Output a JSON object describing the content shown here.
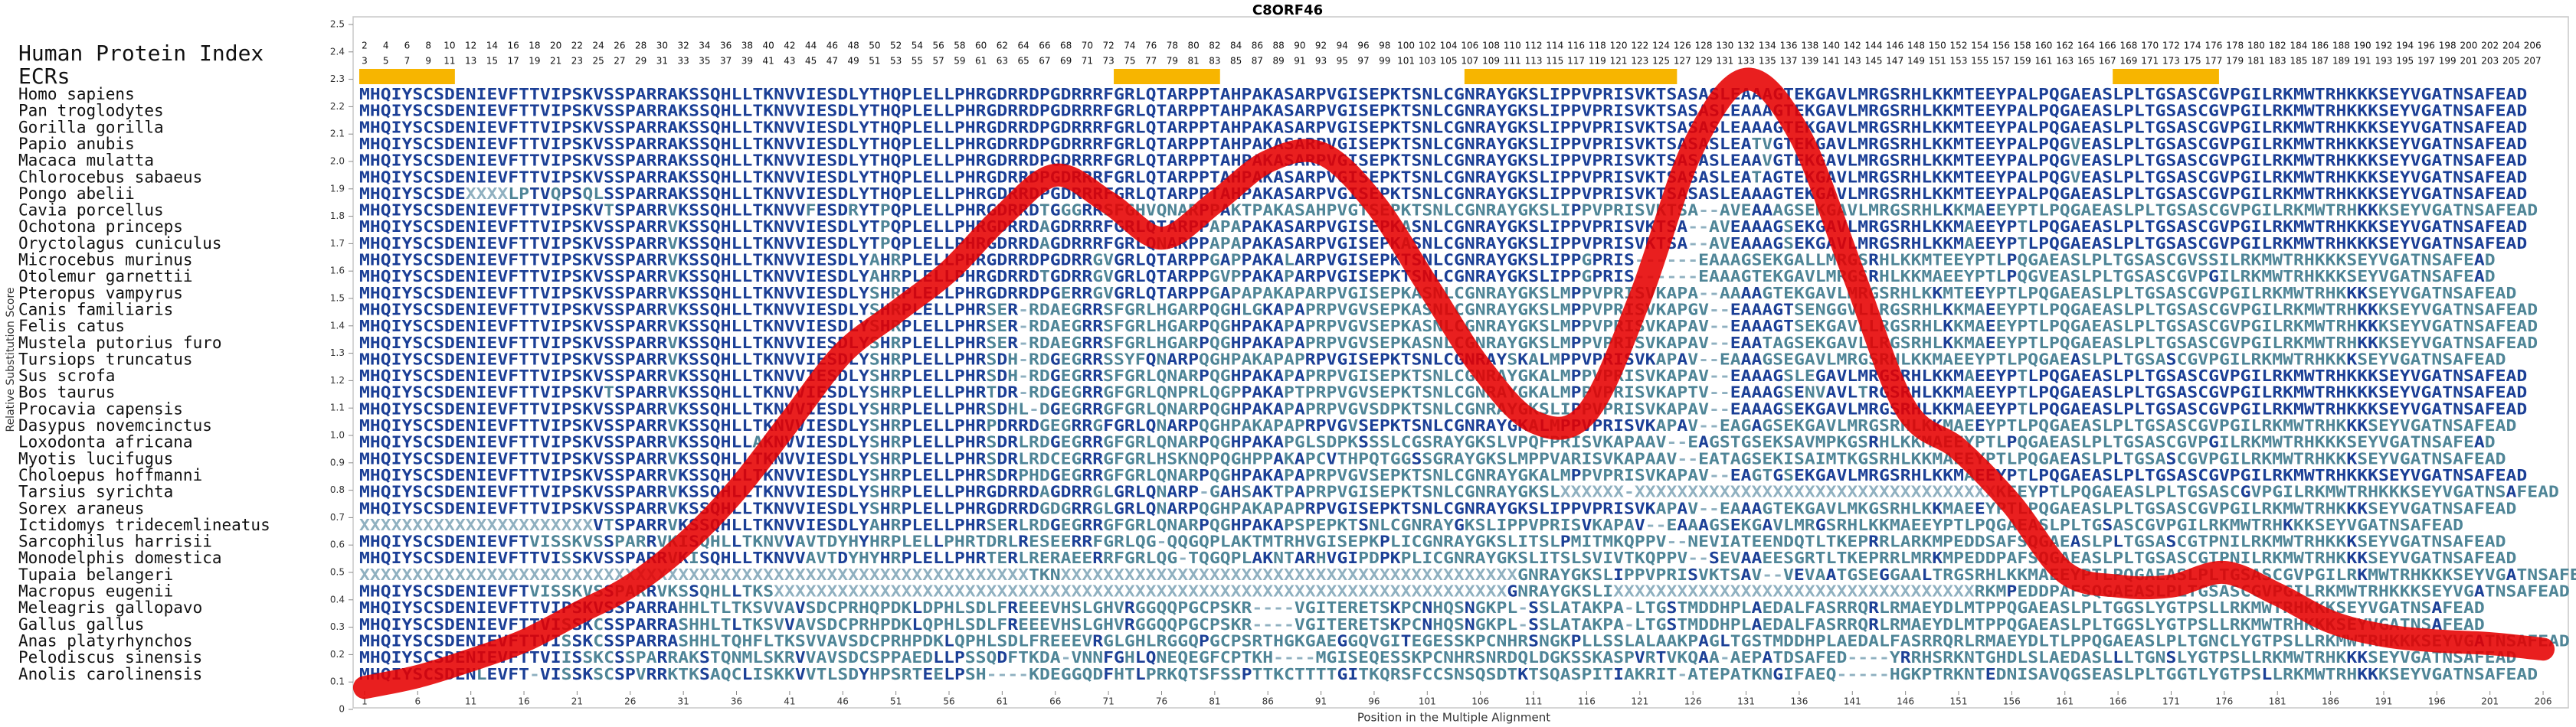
{
  "chart_data": {
    "type": "line",
    "title": "C8ORF46",
    "x_label": "Position in the Multiple Alignment",
    "y_label": "Relative Substitution Score",
    "x": [
      1,
      6,
      11,
      16,
      21,
      26,
      31,
      36,
      41,
      46,
      51,
      56,
      61,
      66,
      71,
      76,
      81,
      86,
      91,
      96,
      101,
      106,
      111,
      116,
      121,
      126,
      131,
      136,
      141,
      146,
      151,
      156,
      161,
      166,
      171,
      176,
      181,
      186,
      191,
      196,
      201,
      206
    ],
    "values": [
      0.08,
      0.12,
      0.18,
      0.25,
      0.35,
      0.45,
      0.6,
      0.8,
      1.05,
      1.3,
      1.45,
      1.6,
      1.8,
      1.95,
      1.85,
      1.72,
      1.85,
      2.0,
      2.03,
      1.85,
      1.55,
      1.25,
      1.05,
      1.08,
      1.5,
      2.05,
      2.3,
      2.1,
      1.6,
      1.1,
      0.95,
      0.75,
      0.5,
      0.45,
      0.45,
      0.5,
      0.42,
      0.32,
      0.27,
      0.25,
      0.24,
      0.22
    ],
    "color": "#e60000",
    "xlim": [
      0.5,
      206.5
    ],
    "xticks": [
      1,
      6,
      11,
      16,
      21,
      26,
      31,
      36,
      41,
      46,
      51,
      56,
      61,
      66,
      71,
      76,
      81,
      86,
      91,
      96,
      101,
      106,
      111,
      116,
      121,
      126,
      131,
      136,
      141,
      146,
      151,
      156,
      161,
      166,
      171,
      176,
      181,
      186,
      191,
      196,
      201,
      206
    ],
    "ylim": [
      0,
      2.5
    ],
    "yticks": [
      0,
      0.1,
      0.2,
      0.3,
      0.4,
      0.5,
      0.6,
      0.7,
      0.8,
      0.9,
      {
        "value": 1,
        "label": "1.0"
      },
      1.1,
      1.2,
      1.3,
      1.4,
      1.5,
      1.6,
      1.7,
      1.8,
      1.9,
      {
        "value": 2,
        "label": "2.0"
      },
      2.1,
      2.2,
      2.3,
      2.4,
      2.5
    ],
    "alignment": {
      "protein_index_label": "Human Protein Index",
      "protein_index_top": [
        2,
        4,
        6,
        8,
        10,
        12,
        14,
        16,
        18,
        20,
        22,
        24,
        26,
        28,
        30,
        32,
        34,
        36,
        38,
        40,
        42,
        44,
        46,
        48,
        50,
        52,
        54,
        56,
        58,
        60,
        62,
        64,
        66,
        68,
        70,
        72,
        74,
        76,
        78,
        80,
        82,
        84,
        86,
        88,
        90,
        92,
        94,
        96,
        98,
        100,
        102,
        104,
        106,
        108,
        110,
        112,
        114,
        116,
        118,
        120,
        122,
        124,
        126,
        128,
        130,
        132,
        134,
        136,
        138,
        140,
        142,
        144,
        146,
        148,
        150,
        152,
        154,
        156,
        158,
        160,
        162,
        164,
        166,
        168,
        170,
        172,
        174,
        176,
        178,
        180,
        182,
        184,
        186,
        188,
        190,
        192,
        194,
        196,
        198,
        200,
        202,
        204,
        206
      ],
      "protein_index_bottom": [
        3,
        5,
        7,
        9,
        11,
        13,
        15,
        17,
        19,
        21,
        23,
        25,
        27,
        29,
        31,
        33,
        35,
        37,
        39,
        41,
        43,
        45,
        47,
        49,
        51,
        53,
        55,
        57,
        59,
        61,
        63,
        65,
        67,
        69,
        71,
        73,
        75,
        77,
        79,
        81,
        83,
        85,
        87,
        89,
        91,
        93,
        95,
        97,
        99,
        101,
        103,
        105,
        107,
        109,
        111,
        113,
        115,
        117,
        119,
        121,
        123,
        125,
        127,
        129,
        131,
        133,
        135,
        137,
        139,
        141,
        143,
        145,
        147,
        149,
        151,
        153,
        155,
        157,
        159,
        161,
        163,
        165,
        167,
        169,
        171,
        173,
        175,
        177,
        179,
        181,
        183,
        185,
        187,
        189,
        191,
        193,
        195,
        197,
        199,
        201,
        203,
        205,
        207
      ],
      "ecr_label": "ECRs",
      "ecr_color": "#f7b500",
      "ecrs": [
        {
          "start": 1,
          "end": 9
        },
        {
          "start": 72,
          "end": 81
        },
        {
          "start": 105,
          "end": 124
        },
        {
          "start": 166,
          "end": 175
        }
      ],
      "species": [
        {
          "name": "Homo sapiens",
          "sequence": "MHQIYSCSDENIEVFTTVIPSKVSSPARRAKSSQHLLTKNVVIESDLYTHQPLELLPHRGDRRDPGDRRRFGRLQTARPPTAHPAKASARPVGISEPKTSNLCGNRAYGKSLIPPVPRISVKTSASASLEAAAGTEKGAVLMRGSRHLKKMTEEYPALPQGAEASLPLTGSASCGVPGILRKMWTRHKKKSEYVGATNSAFEAD"
        },
        {
          "name": "Pan troglodytes",
          "sequence": "MHQIYSCSDENIEVFTTVIPSKVSSPARRAKSSQHLLTKNVVIESDLYTHQPLELLPHRGDRRDPGDRRRFGRLQTARPPTAHPAKASARPVGISEPKTSNLCGNRAYGKSLIPPVPRISVKTSASASLEAAAGTEKGAVLMRGSRHLKKMTEEYPALPQGAEASLPLTGSASCGVPGILRKMWTRHKKKSEYVGATNSAFEAD"
        },
        {
          "name": "Gorilla gorilla",
          "sequence": "MHQIYSCSDENIEVFTTVIPSKVSSPARRAKSSQHLLTKNVVIESDLYTHQPLELLPHRGDRRDPGDRRRFGRLQTARPPTAHPAKASARPVGISEPKTSNLCGNRAYGKSLIPPVPRISVKTSASASLEAAAGTEKGAVLMRGSRHLKKMTEEYPALPQGAEASLPLTGSASCGVPGILRKMWTRHKKKSEYVGATNSAFEAD"
        },
        {
          "name": "Papio anubis",
          "sequence": "MHQIYSCSDENIEVFTTVIPSKVSSPARRAKSSQHLLTKNVVIESDLYTHQPLELLPHRGDRRDPGDRRRFGRLQTARPPTAHPAKASARPVGISEPKTSNLCGNRAYGKSLIPPVPRISVKTSASASLEATVGTEKGAVLMRGSRHLKKMTEEYPALPQGVEASLPLTGSASCGVPGILRKMWTRHKKKSEYVGATNSAFEAD"
        },
        {
          "name": "Macaca mulatta",
          "sequence": "MHQIYSCSDENIEVFTTVIPSKVSSPARRAKSSQHLLTKNVVIESDLYTHQPLELLPHRGDRRDPGDRRRFGRLQTARPPTAHPAKASARPVGISEPKTSNLCGNRAYGKSLIPPVPRISVKTSASASLEAAVGTEKGAVLMRGSRHLKKMTEEYPALPQGVEASLPLTGSASCGVPGILRKMWTRHKKKSEYVGATNSAFEAD"
        },
        {
          "name": "Chlorocebus sabaeus",
          "sequence": "MHQIYSCSDENIEVFTTVIPSKVSSPARRAKSSQHLLTKNVVIESDLYTHQPLELLPHRGDRRDPGDRRRFGRLQTARPPTAHPAKASARPVGISEPKTSNLCGNRAYGKSLIPPVPRISVKTSASASLEATAGTEKGAVLMRGSRHLKKMTEEYPALPQGVEASLPLTGSASCGVPGILRKMWTRHKKKSEYVGATNSAFEAD"
        },
        {
          "name": "Pongo abelii",
          "sequence": "MHQIYSCSDEXXXXLPTVQPSQLSSPARRAKSSQHLLTKNVVIESDLYTHQPLELLPHRGDRRDPGDRRRFGRLQTARPPTAHPAKASARPVGISEPKTSNLCGNRAYGKSLIPPVPRISVKTSASASLEAAAGTEKGAVLMRGSRHLKKMTEEYPALPQGAEASLPLTGSASCGVPGILRKMWTRHKKKSEYVGATNSAFEAD"
        },
        {
          "name": "Cavia porcellus",
          "sequence": "MHQIYSCSDENIEVFTTVIPSKVTSPARRVKSSQHLLTKNVVFESDRYTPQPLELLPHRGDRRDTGGGRRSFGHVQNARPPAKTPAKASAHPVGTSEPKTSNLCGNRAYGKSLIPPVPRISVKTSA--AVEAAAGSEKGAVLMRGSRHLKKMAEEYPTLPQGAEASLPLTGSASCGVPGILRKMWTRHKKKSEYVGATNSAFEAD"
        },
        {
          "name": "Ochotona princeps",
          "sequence": "MHQIYSCSDENIEVFTTVIPSKVSSPARRVKSSQHLLTKNVVIESDLYTPQPLELLPHRGDRRDAGDRRRFGRLQTARPPAPAPAKASARPVGISEPKASNLCGNRAYGKSLIPPVPRISVKTSA--AVEAAAGSEKGAVLMRGSRHLKKMAEEYPTLPQGAEASLPLTGSASCGVPGILRKMWTRHKKKSEYVGATNSAFEAD"
        },
        {
          "name": "Oryctolagus cuniculus",
          "sequence": "MHQIYSCSDENIEVFTTVIPSKVSSPARRVKSSQHLLTKNVVIESDLYTPQPLELLPHRGDRRDAGDRRRFGRLQNARPPAPAPAKASARPVGISEPKASNLCGNRAYGKSLIPPVPRISVKTSA--AVEAAAGSEKGAVLMRGSRHLKKMAEEYPTLPQGAEASLPLTGSASCGVPGILRKMWTRHKKKSEYVGATNSAFEAD"
        },
        {
          "name": "Microcebus murinus",
          "sequence": "MHQIYSCSDENIEVFTTVIPSKVSSPARRVKSSQHLLTKNVVIESDLYAHRPLELLPHRGDRRDPGDRRGVGRLQTARPPGAPPAKALARPVGISEPKTSNLCGNRAYGKSLIPPGPRIS------EAAAGSEKGALLMRGSRHLKKMTEEYPTLPQGAEASLPLTGSASCGVSSILRKMWTRHKKKSEYVGATNSAFEAD"
        },
        {
          "name": "Otolemur garnettii",
          "sequence": "MHQIYSCSDENIEVFTTVIPSKVSSPARRVKSSQHLLTKNVVIESDLYAHRPLELLPHRGDRRDTGDRRGVGRLQTARPPGVPPAKAPARPVGISEPKTSNLCGNRAYGKSLIPPGPRIS------EAAAGTEKGAVLMRGSRHLKKMAEEYPTLPQGVEASLPLTGSASCGVPGILRKMWTRHKKKSEYVGATNSAFEAD"
        },
        {
          "name": "Pteropus vampyrus",
          "sequence": "MHQIYSCSDENIEVFTTVIPSKVSSPARRVKSSQHLLTKNVVIESDLYSHRPLELLPHRGDRRDPGERRGVGRLQTARPPGAPAPAKAPARPVGISEPKASNLCGNRAYGKSLMPPVPRISVKAPA--AAAAGTEKGAVLMRGSRHLKKMTEEYPTLPQGAEASLPLTGSASCGVPGILRKMWTRHKKKSEYVGATNSAFEAD"
        },
        {
          "name": "Canis familiaris",
          "sequence": "MHQIYSCSDENIEVFTTVIPSKVSSPARRVKSSQHLLTKNVVIESDLYSHRPLELLPHRSER-RDAEGRRSFGRLHGARPQGHLGKAPAPRPVGVSEPKASNLCGNRAYGKSLMPPVPRISVKAPGV--EAAAGTSENGGVLLRGSRHLKKMAEEYPTLPQGAEASLPLTGSASCGVPGILRKMWTRHKKKSEYVGATNSAFEAD"
        },
        {
          "name": "Felis catus",
          "sequence": "MHQIYSCSDENIEVFTTVIPSKVSSPARRVKSSQHLLTKNVVIESDLYSHRPLELLPHRSER-RDAEGRRSFGRLHGARPQGHPAKAPAPRPVGVSEPKASNLCGNRAYGKSLMPPVPRISVKAPAV--EAAAGTSEKGAVLLRGSRHLKKMAEEYPTLPQGAEASLPLTGSASCGVPGILRKMWTRHKKKSEYVGATNSAFEAD"
        },
        {
          "name": "Mustela putorius furo",
          "sequence": "MHQIYSCSDENIEVFTTVIPSKVSSPARRVKSSQHLLTKNVVIESDLYSHRPLELLPHRSER-RDAEGRRSFGRLHGARPQGHPAKAPAPRPVGVSEPKASNLCGNRAYGKSLMPPVPRISVKAPAV--EAATAGSEKGAVLLRGSRHLKKMAEEYPTLPQGAEASLPLTGSASCGVPGILRKMWTRHKKKSEYVGATNSAFEAD"
        },
        {
          "name": "Tursiops truncatus",
          "sequence": "MHQIYSCSDENIEVFTTVIPSKVSSPARRVKSSQHLLTKNVVIESDLYSHRPLELLPHRSDH-RDGEGRRSSYFQNARPQGHPAKAPAPRPVGISEPKTSNLCGNRAYSKALMPPVPRISVKAPAV--EAAAGSEGAVLMRGSRHLKKMAEEYPTLPQGAEASLPLTGSASCGVPGILRKMWTRHKKKSEYVGATNSAFEAD"
        },
        {
          "name": "Sus scrofa",
          "sequence": "MHQIYSCSDENIEVFTTVIPSKVSSPARRVKSSQHLLTKNVVIESDLYSHRPLELLPHRSDH-RDGEGRRSFGRLQNARPQGHPAKAPAPRPVGISEPKTSNLCGNRAYGKALMPPVPRISVKAPAV--EAAAGSLEGAVLMRGSRHLKKMAEEYPTLPQGAEASLPLTGSASCGVPGILRKMWTRHKKKSEYVGATNSAFEAD"
        },
        {
          "name": "Bos taurus",
          "sequence": "MHQIYSCSDENIEVFTTVIPSKVTSPARRVKSSQHLLTKNVVIESDLYSHRPLELLPHRTDR-RDGEGRRGFGRLQNPRLQGPPAKAPTPRPVGVSEPKTSNLCGNRAYGKALMPPVPRISVKAPTV--EAAAGSENVAVLTRGSRHLKKMAEEYPTLPQGAEASLPLTGSASCGVPGILRKMWTRHKKKSEYVGATNSAFEAD"
        },
        {
          "name": "Procavia capensis",
          "sequence": "MHQIYSCSDENIEVFTTVIPSKVSSPARRVKSSQHLLTKNVVIESDLYSHRPLELLPHRSDHL-DGEGRRGFGRLQNARPQGHPAKAPAPRPVGVSDPKTSNLCGNRAYGKSLIPPVPRISVKAPAV--EAAAGSEKGAVLMRGSRHLKKMAEEYPTLPQGAEASLPLTGSASCGVPGILRKMWTRHKKKSEYVGATNSAFEAD"
        },
        {
          "name": "Dasypus novemcinctus",
          "sequence": "MHQIYSCSDENIEVFTTVIPSKVSSPARRVKSSQHLLTKNVVIESDLYSHRPLELLPHRPDRRDGEGRRGFGRLQNARPQGHPAKAPAPRPVGVSEPKTSNLCGNRAYGKALMPPVPRISVKAPAV--EAGAGSEKGAVLMRGSRHLKKMAEEYPTLPQGAEASLPLTGSASCGVPGILRKMWTRHKKKSEYVGATNSAFEAD"
        },
        {
          "name": "Loxodonta africana",
          "sequence": "MHQIYSCSDENIEVFTTVIPSKVSSPARRVKSSQHLLAKNVVIESDLYSHRPLELLPHRSDRLRDGEGRRGFGRLQNARPQGHPAKAPGLSDPKSSSLCGSRAYGKSLVPQFPRISVKAPAAV--EAGSTGSEKSAVMPKGSRHLKKMAEEYPTLPQGAEASLPLTGSASCGVPGILRKMWTRHKKKSEYVGATNSAFEAD"
        },
        {
          "name": "Myotis lucifugus",
          "sequence": "MHQIYSCSDENIEVFTTVIPSKVSSPARRVKSSQHLLTKNVVIESDLYSHRPLELLPHRSDRLRDCEGRRGFGRLHSKNQPQGHPPAKAPCVTHPQTGGSSGRAYGKSLMPPVARISVKAPAAV--EATAGSEKISAIMTKGSRHLKKMAEEYPTLPQGAEASLPLTGSASCGVPGILRKMWTRHKKKSEYVGATNSAFEAD"
        },
        {
          "name": "Choloepus hoffmanni",
          "sequence": "MHQIYSCSDENIEVFTTVIPSKVSSPARRVKSSQHLLTKNVVIESDLYSHRPLELLPHRSDRPHDGEGRRGFGRLQNARPQGHPAKAPAPRPVGVSEPKTSNLCGNRAYGKALMPPVPRISVKAPAV--EAGTGSEKGAVLMRGSRHLKKMAEEYPTLPQGAEASLPLTGSASCGVPGILRKMWTRHKKKSEYVGATNSAFEAD"
        },
        {
          "name": "Tarsius syrichta",
          "sequence": "MHQIYSCSDENIEVFTTVIPSKVSSPARRVKSSQHLLTKNVVIESDLYSHRPLELLPHRGDRRDAGDRRGLGRLQNARP-GAHSAKTPAPRPVGISEPKTSNLCGNRAYGKSLXXXXXX-XXXXXXXXXXXXXXXXXXXXXXXXXXXXXXXXXXKEEYPTLPQGAEASLPLTGSASCGVPGILRKMWTRHKKKSEYVGATNSAFEAD"
        },
        {
          "name": "Sorex araneus",
          "sequence": "MHQIYSCSDENIEVFTTVIPSKVSSPARRVKSSQHLLTKNVVIESDLYSHRPLELLPHRGDRRDGDGRRGLGRLQNARPQGHPAKAPAPRPVGISEPKTSNLCGNRAYGKSLIPPVPRISVKAPAV--EAAAGTEKGAVLMKGSRHLKKMAEEYPTLPQGAEASLPLTGSASCGVPGILRKMWTRHKKKSEYVGATNSAFEAD"
        },
        {
          "name": "Ictidomys tridecemlineatus",
          "sequence": "XXXXXXXXXXXXXXXXXXXXXXVTSPARRVKSSQHLLTKNVVIESDLYAHRPLELLPHRSERLRDGEGRRGFGRLQNARPQGHPAKAPSPEPKTSNLCGNRAYGKSLIPPVPRISVKAPAV--EAAAGSEKGAVLMRGSRHLKKMAEEYPTLPQGAEASLPLTGSASCGVPGILRKMWTRHKKKSEYVGATNSAFEAD"
        },
        {
          "name": "Sarcophilus harrisii",
          "sequence": "MHQIYSCSDENIEVFTVISSKVSSPARRVKISQHLLTKNVVAVTDYHYHRPLELLPHRTDRLRESEERRFGRLQG-QQGQPLAKTMTRHVGISEPKPLICGNRAYGKSLITSLPMITMKQPPV--NEVIATEENDQTLTKEPRRLARKMPEDDSAFSQGAEASLPLTGSASCGTPNILRKMWTRHKKKSEYVGATNSAFEAD"
        },
        {
          "name": "Monodelphis domestica",
          "sequence": "MHQIYSCSDENIEVFTTVISSKVSSPARRVKISQHLLTKNVVAVTDYHYHRPLELLPHRTERLRERAEERRFGRLQG-TQGQPLAKNTARHVGIPDPKPLICGNRAYGKSLITSLSVIVTKQPPV--SEVAAEESGRTLTKEPRRLMRKMPEDDPAFSQGAEASLPLTGSASCGTPNILRKMWTRHKKKSEYVGATNSAFEAD"
        },
        {
          "name": "Tupaia belangeri",
          "sequence": "XXXXXXXXXXXXXXXXXXXXXXXXXXXXXXXXXXXXXXXXXXXXXXXXXXXXXXXXXXXXXXXTKNXXXXXXXXXXXXXXXXXXXXXXXXXXXXXXXXXXXXXXXXXXXGNRAYGKSLIPPVPRISVKTSAV--VEVAATGSEGGAALTRGSRHLKKMAEEYPTLPQGAEASLPLTGSASCGVPGILRKMWTRHKKKSEYVGATNSAFEAD"
        },
        {
          "name": "Macropus eugenii",
          "sequence": "MHQIYSCSDENIEVFTVISSKVSSPARRVKSSQHLLTKSXXXXXXXXXXXXXXXXXXXXXXXXXXXXXXXXXXXXXXXXXXXXXXXXXXXXXXXXXXXXXXXXXXXXXGNRAYGKSLIXXXXXXXXXXXXXXXXXXXXXXXXXXXXXXXXXXRKMPEDDPAFSQGAEASLPLTGSASCGVPGILRKMWTRHKKKSEYVGATNSAFEAD"
        },
        {
          "name": "Meleagris gallopavo",
          "sequence": "MHQIYSCSDENIEVFTTVIPSKVSSPARRAHHLTLTKSVVAVSDCPRHQPDKLDPHLSDLFREEEVHSLGHVRGGQQPGCPSKR----VGITERETSKPCNHQSNGKPL-SSLATAKPA-LTGSTMDDHPLAEDALFASRRQRLRMAEYDLMTPPQGAEASLPLTGGSLYGTPSLLRKMWTRHKKKSEYVGATNSAFEAD"
        },
        {
          "name": "Gallus gallus",
          "sequence": "MHQIYSCSDENIEVFTTVISSKCSSPARRASHHLTLTKSVVAVSDCPRHPDKLQPHLSDLFREEEVHSLGHVRGGQQPGCPSKR----VGITERETSKPCNHQSNGKPL-SSLATAKPA-LTGSTMDDHPLAEDALFASRRQRLRMAEYDLMTPPQGAEASLPLTGGSLYGTPSLLRKMWTRHKKKSEYVGATNSAFEAD"
        },
        {
          "name": "Anas platyrhynchos",
          "sequence": "MHQIYSCSDENIEVFTTVISSKCSSPARRASHHLTQHFLTKSVVAVSDCPRHPDKLQPHLSDLFREEEVRGLGHLRGGQPGCPSRTHGKGAEGGQVGITEGESSKPCNHRSNGKPLLSSLALAAKPAGLTGSTMDDHPLAEDALFASRRQRLRMAEYDLTLPPQGAEASLPLTGNCLYGTPSLLRKMWTRHKKKSEYVGATNSAFEAD"
        },
        {
          "name": "Pelodiscus sinensis",
          "sequence": "MHQIYSCSDENIEVFTTVIISSKCSSPARRAKSTQNMLSKRVVAVSDCSPPAEDLLPSSQDFTKDA-VNNFGHLQNEQEGFCPTKH----MGISEQESSKPCNHRSNRDQLDGKSSKASPVRTVKQAA-AEPATDSAFED----YRRHSRKNTGHDLSLAEDASLLLTGNSLYGTPSLLRKMWTRHKKKSEYVGATNSAFEAD"
        },
        {
          "name": "Anolis carolinensis",
          "sequence": "MHQIYSCSDENLEVFT-VISSKSCSPVRRKTKSAQCLISKKVVTLSDYHPSRTEELPSH----KDEGGQDFHTLPRKQTSFSSPTTKCTTTTGITKQRSFCCSNSQSDTKTSQASPITIAKRIT-ATEPATKNGIFAEQ-----HGKPTRKNTEDNISAVQGSEASLPLTGGTLYGTPSLLRKMWTRHKKKSEYVGATNSAFEAD"
        }
      ]
    }
  }
}
